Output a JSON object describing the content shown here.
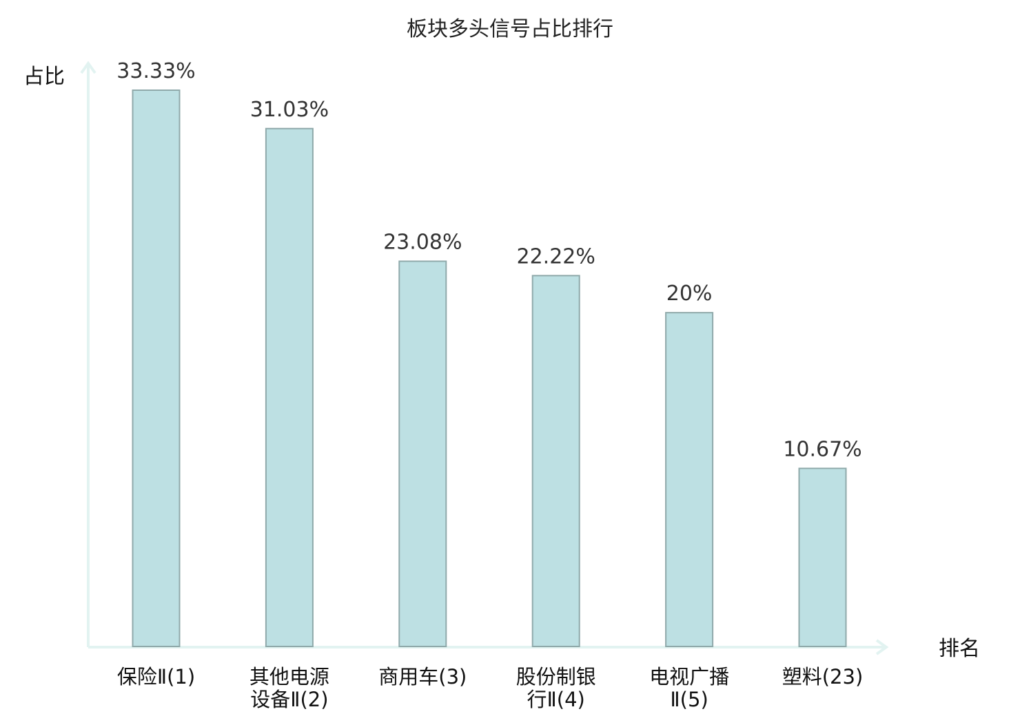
{
  "chart_data": {
    "type": "bar",
    "title": "板块多头信号占比排行",
    "xlabel": "排名",
    "ylabel": "占比",
    "ylim": [
      0,
      33.33
    ],
    "grid": false,
    "legend": "none",
    "categories": [
      [
        "保险Ⅱ(1)"
      ],
      [
        "其他电源",
        "设备Ⅱ(2)"
      ],
      [
        "商用车(3)"
      ],
      [
        "股份制银",
        "行Ⅱ(4)"
      ],
      [
        "电视广播",
        "Ⅱ(5)"
      ],
      [
        "塑料(23)"
      ]
    ],
    "values": [
      33.33,
      31.03,
      23.08,
      22.22,
      20,
      10.67
    ],
    "value_labels": [
      "33.33%",
      "31.03%",
      "23.08%",
      "22.22%",
      "20%",
      "10.67%"
    ],
    "highlight_index": 5
  },
  "colors": {
    "bar_fill": "#bde0e3",
    "bar_stroke": "#8fa9aa",
    "axis": "#e2f3f1",
    "highlight_text": "#e00000",
    "text": "#111111"
  }
}
